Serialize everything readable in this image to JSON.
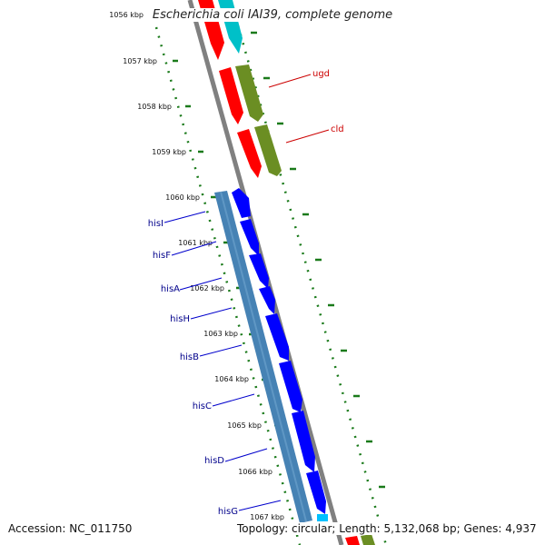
{
  "map": {
    "title": "Escherichia coli IAI39, complete genome",
    "accession_text": "Accession: NC_011750",
    "stats_text": "Topology: circular; Length: 5,132,068 bp; Genes: 4,937",
    "kbp_labels": [
      "1056 kbp",
      "1057 kbp",
      "1058 kbp",
      "1059 kbp",
      "1060 kbp",
      "1061 kbp",
      "1062 kbp",
      "1063 kbp",
      "1064 kbp",
      "1065 kbp",
      "1066 kbp",
      "1067 kbp"
    ],
    "right_gene_labels": [
      "ugd",
      "cld"
    ],
    "left_gene_labels": [
      "hisI",
      "hisF",
      "hisA",
      "hisH",
      "hisB",
      "hisC",
      "hisD",
      "hisG"
    ]
  },
  "colors": {
    "backbone": "#808080",
    "red_feature": "#ff0000",
    "olive_feature": "#6b8e23",
    "cyan_feature": "#00c0c8",
    "blue_feature": "#0000ff",
    "steelblue_feature": "#4682b4",
    "tick_green": "#1a7a1a",
    "right_label": "#cc0000",
    "left_label": "#00008b"
  }
}
